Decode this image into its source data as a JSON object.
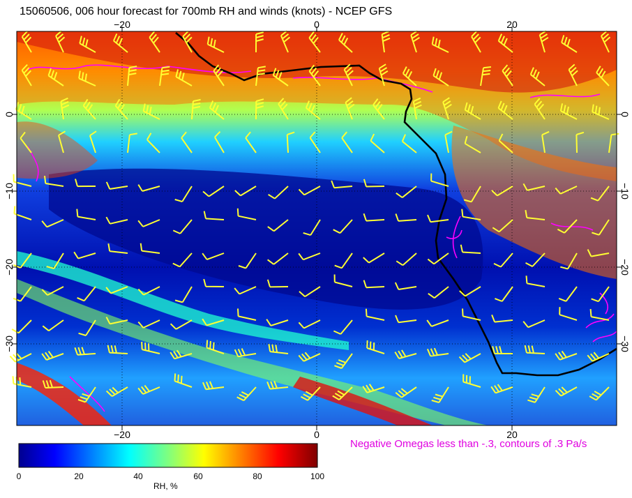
{
  "title": "15060506, 006 hour forecast for 700mb RH and winds (knots) - NCEP GFS",
  "map": {
    "lon_labels": [
      "−20",
      "0",
      "20"
    ],
    "lat_labels": [
      "0",
      "−10",
      "−20",
      "−30"
    ],
    "gridlines": "dotted",
    "colors": {
      "coastline": "#000000",
      "wind_barbs": "#ffff33",
      "omega_contours": "#ff00ff"
    }
  },
  "colorbar": {
    "title": "RH, %",
    "ticks": [
      "0",
      "20",
      "40",
      "60",
      "80",
      "100"
    ],
    "range": [
      0,
      100
    ],
    "colormap": "jet"
  },
  "omega_note": "Negative Omegas less than -.3, contours of .3 Pa/s"
}
